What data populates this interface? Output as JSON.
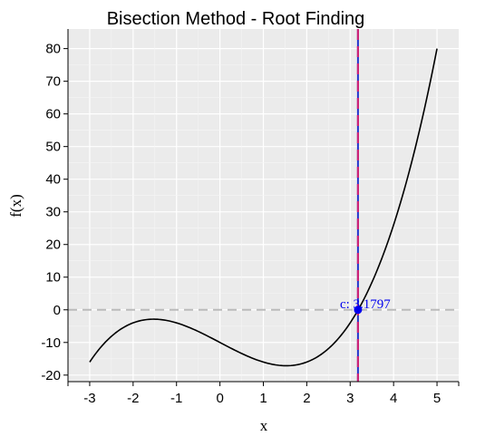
{
  "chart_data": {
    "type": "line",
    "title": "Bisection Method - Root Finding",
    "xlabel": "x",
    "ylabel": "f(x)",
    "xlim": [
      -3.5,
      5.5
    ],
    "ylim": [
      -22,
      86
    ],
    "x_ticks": [
      -3,
      -2,
      -1,
      0,
      1,
      2,
      3,
      4,
      5
    ],
    "y_ticks": [
      -20,
      -10,
      0,
      10,
      20,
      30,
      40,
      50,
      60,
      70,
      80
    ],
    "grid": true,
    "function": "x^3 - 7x - 10",
    "series": [
      {
        "x_range": [
          -3,
          5
        ],
        "color": "#000000"
      }
    ],
    "reference_lines": [
      {
        "orientation": "horizontal",
        "value": 0,
        "style": "dashed",
        "color": "#bbbbbb"
      },
      {
        "orientation": "vertical",
        "value": 3.1797,
        "style": "solid",
        "color": "#2233cc"
      },
      {
        "orientation": "vertical",
        "value": 3.1797,
        "style": "dashed",
        "color": "#cc2277"
      }
    ],
    "point": {
      "x": 3.1797,
      "y": 0,
      "color": "#0000ee"
    },
    "annotation": {
      "text": "c: 3.1797",
      "x": 3.1797,
      "y": 0
    }
  }
}
